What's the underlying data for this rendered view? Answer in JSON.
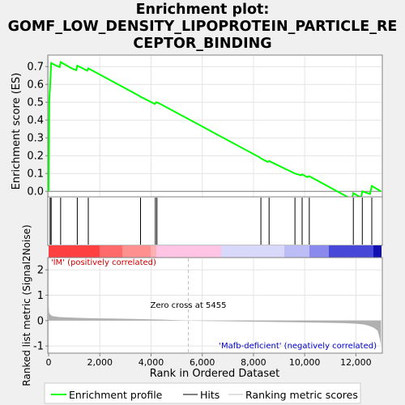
{
  "title_lines": [
    "Enrichment plot:",
    "GOMF_LOW_DENSITY_LIPOPROTEIN_PARTICLE_RE",
    "CEPTOR_BINDING"
  ],
  "colors": {
    "es_line": "#00ff00",
    "hit": "#000000",
    "metric_fill": "#b0b0b0",
    "zero_cross": "#c0c0c0",
    "pos_label": "#cc0000",
    "neg_label": "#0000cc"
  },
  "chart_data": {
    "type": "line",
    "title": "Enrichment plot: GOMF_LOW_DENSITY_LIPOPROTEIN_PARTICLE_RECEPTOR_BINDING",
    "xlabel": "Rank in Ordered Dataset",
    "es_panel": {
      "ylabel": "Enrichment score (ES)",
      "ylim": [
        -0.09,
        0.76
      ],
      "yticks": [
        0.0,
        0.1,
        0.2,
        0.3,
        0.4,
        0.5,
        0.6,
        0.7
      ],
      "ytick_labels": [
        "0.0",
        "0.1",
        "0.2",
        "0.3",
        "0.4",
        "0.5",
        "0.6",
        "0.7"
      ],
      "series": [
        {
          "name": "Enrichment profile",
          "x": [
            0,
            30,
            60,
            100,
            300,
            430,
            470,
            900,
            1080,
            1120,
            1400,
            1510,
            1550,
            3550,
            3590,
            3650,
            4150,
            4200,
            4300,
            8250,
            8290,
            8550,
            8610,
            9550,
            9620,
            9850,
            9900,
            10100,
            10180,
            11850,
            11900,
            12200,
            12250,
            12550,
            12620,
            12980
          ],
          "y": [
            0.0,
            0.52,
            0.59,
            0.72,
            0.705,
            0.697,
            0.725,
            0.69,
            0.68,
            0.705,
            0.685,
            0.677,
            0.69,
            0.535,
            0.53,
            0.527,
            0.49,
            0.5,
            0.495,
            0.19,
            0.185,
            0.165,
            0.17,
            0.105,
            0.1,
            0.09,
            0.095,
            0.08,
            0.085,
            -0.045,
            -0.01,
            -0.035,
            0.0,
            -0.015,
            0.03,
            0.0
          ]
        }
      ]
    },
    "hits": [
      60,
      100,
      470,
      1120,
      1550,
      3590,
      4170,
      4230,
      8290,
      8610,
      9620,
      9900,
      10180,
      11900,
      12250,
      12620
    ],
    "metric_panel": {
      "ylabel": "Ranked list metric (Signal2Noise)",
      "ylim": [
        -1.25,
        2.45
      ],
      "yticks": [
        -1,
        0,
        1,
        2
      ],
      "ytick_labels": [
        "-1",
        "0",
        "1",
        "2"
      ],
      "x": [
        0,
        20,
        60,
        150,
        400,
        800,
        1500,
        2500,
        3500,
        4500,
        5455,
        6500,
        8000,
        9500,
        10500,
        11500,
        12000,
        12300,
        12500,
        12700,
        12850,
        12930,
        12980
      ],
      "y": [
        0.6,
        0.32,
        0.24,
        0.18,
        0.14,
        0.12,
        0.1,
        0.08,
        0.06,
        0.04,
        0.0,
        -0.02,
        -0.04,
        -0.06,
        -0.08,
        -0.1,
        -0.12,
        -0.15,
        -0.2,
        -0.28,
        -0.4,
        -0.7,
        -1.0
      ],
      "zero_cross_rank": 5455,
      "zero_cross_label": "Zero cross at 5455",
      "pos_label": "'lM' (positively correlated)",
      "neg_label": "'Mafb-deficient' (negatively correlated)"
    },
    "xlim": [
      0,
      13000
    ],
    "xticks": [
      0,
      2000,
      4000,
      6000,
      8000,
      10000,
      12000
    ],
    "xtick_labels": [
      "0",
      "2,000",
      "4,000",
      "6,000",
      "8,000",
      "10,000",
      "12,000"
    ],
    "legend": {
      "placement": "bottom",
      "entries": [
        "Enrichment profile",
        "Hits",
        "Ranking metric scores"
      ]
    }
  }
}
